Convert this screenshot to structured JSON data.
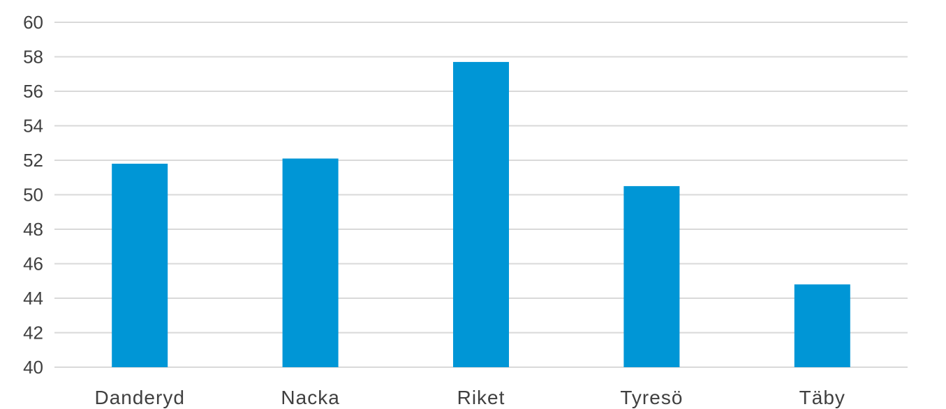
{
  "chart_data": {
    "type": "bar",
    "title": "",
    "xlabel": "",
    "ylabel": "",
    "categories": [
      "Danderyd",
      "Nacka",
      "Riket",
      "Tyresö",
      "Täby"
    ],
    "values": [
      51.8,
      52.1,
      57.7,
      50.5,
      44.8
    ],
    "ylim": [
      40,
      60
    ],
    "yticks": [
      40,
      42,
      44,
      46,
      48,
      50,
      52,
      54,
      56,
      58,
      60
    ],
    "grid": true,
    "legend": "none",
    "bar_color": "#0096d6",
    "grid_color": "#d9d9d9",
    "text_color": "#404040"
  }
}
